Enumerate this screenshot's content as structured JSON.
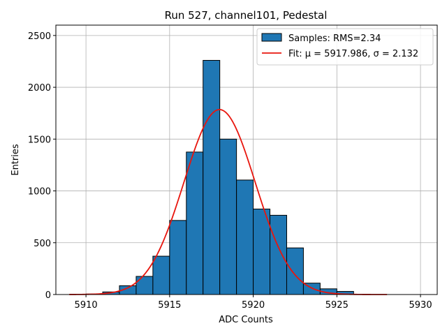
{
  "chart_data": {
    "type": "bar",
    "title": "Run 527, channel101, Pedestal",
    "xlabel": "ADC Counts",
    "ylabel": "Entries",
    "xlim": [
      5908.2,
      5931.0
    ],
    "ylim": [
      0,
      2600
    ],
    "xticks": [
      5910,
      5915,
      5920,
      5925,
      5930
    ],
    "yticks": [
      0,
      500,
      1000,
      1500,
      2000,
      2500
    ],
    "grid": true,
    "legend_position": "top-right",
    "bar_color": "#1f77b4",
    "fit_color": "#e8150d",
    "bins": [
      {
        "x0": 5910,
        "x1": 5911,
        "value": 5
      },
      {
        "x0": 5911,
        "x1": 5912,
        "value": 25
      },
      {
        "x0": 5912,
        "x1": 5913,
        "value": 85
      },
      {
        "x0": 5913,
        "x1": 5914,
        "value": 175
      },
      {
        "x0": 5914,
        "x1": 5915,
        "value": 370
      },
      {
        "x0": 5915,
        "x1": 5916,
        "value": 715
      },
      {
        "x0": 5916,
        "x1": 5917,
        "value": 1375
      },
      {
        "x0": 5917,
        "x1": 5918,
        "value": 2260
      },
      {
        "x0": 5918,
        "x1": 5919,
        "value": 1500
      },
      {
        "x0": 5919,
        "x1": 5920,
        "value": 1105
      },
      {
        "x0": 5920,
        "x1": 5921,
        "value": 825
      },
      {
        "x0": 5921,
        "x1": 5922,
        "value": 765
      },
      {
        "x0": 5922,
        "x1": 5923,
        "value": 450
      },
      {
        "x0": 5923,
        "x1": 5924,
        "value": 110
      },
      {
        "x0": 5924,
        "x1": 5925,
        "value": 55
      },
      {
        "x0": 5925,
        "x1": 5926,
        "value": 30
      }
    ],
    "fit": {
      "mu": 5917.986,
      "sigma": 2.132,
      "amplitude": 1785,
      "x_range": [
        5909,
        5928
      ]
    },
    "legend": [
      {
        "label": "Samples: RMS=2.34",
        "kind": "patch"
      },
      {
        "label": "Fit: μ = 5917.986, σ = 2.132",
        "kind": "line"
      }
    ]
  }
}
